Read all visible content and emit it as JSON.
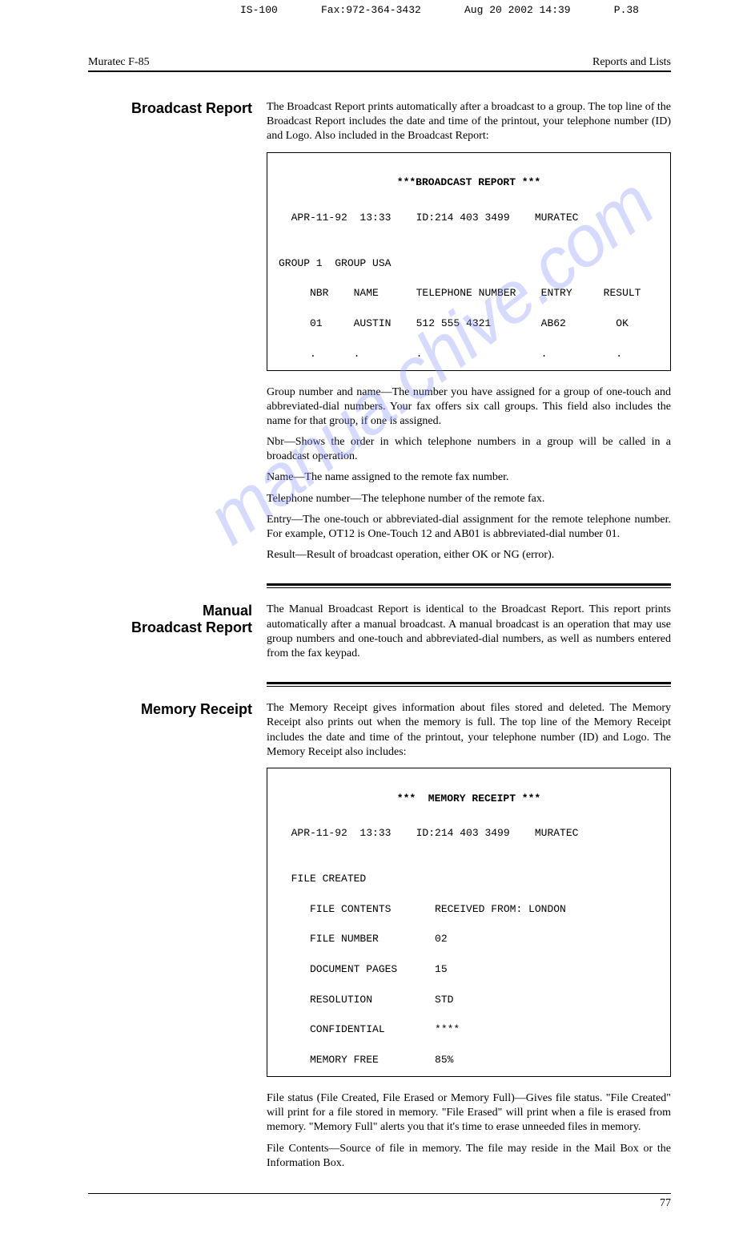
{
  "fax_header": {
    "device": "IS-100",
    "fax": "Fax:972-364-3432",
    "datetime": "Aug 20 2002 14:39",
    "page": "P.38"
  },
  "running_header": {
    "left": "Muratec F-85",
    "right": "Reports and Lists"
  },
  "watermark": "manua.chive.com",
  "sections": {
    "broadcast": {
      "heading": "Broadcast Report",
      "intro": "The Broadcast Report prints automatically after a broadcast to a group. The top line of the Broadcast Report includes the date and time of the printout, your telephone number (ID) and Logo. Also included in the Broadcast Report:",
      "report": {
        "title": "***BROADCAST REPORT ***",
        "line1": "  APR-11-92  13:33    ID:214 403 3499    MURATEC",
        "line2": "GROUP 1  GROUP USA",
        "line3": "     NBR    NAME      TELEPHONE NUMBER    ENTRY     RESULT",
        "line4": "     01     AUSTIN    512 555 4321        AB62        OK",
        "line5": "     .      .         .                   .           ."
      },
      "p1": "Group number and name—The number you have assigned for a group of one-touch and abbreviated-dial numbers. Your fax offers six call groups. This field also includes the name for that group, if one is assigned.",
      "p2": "Nbr—Shows the order in which telephone numbers in a group will be called in a broadcast operation.",
      "p3": "Name—The name assigned to the remote fax number.",
      "p4": "Telephone number—The telephone number of the remote fax.",
      "p5": "Entry—The one-touch or abbreviated-dial assignment for the remote telephone number. For example, OT12 is One-Touch 12 and AB01 is abbreviated-dial number 01.",
      "p6": "Result—Result of broadcast operation, either OK or NG (error)."
    },
    "manual": {
      "heading1": "Manual",
      "heading2": "Broadcast Report",
      "body": "The Manual Broadcast Report is identical to the Broadcast Report. This report prints automatically after a manual broadcast. A manual broadcast is an operation that may use group numbers and one-touch and abbreviated-dial numbers, as well as numbers entered from the fax keypad."
    },
    "memory": {
      "heading": "Memory Receipt",
      "intro": "The Memory Receipt gives information about files stored and deleted. The Memory Receipt also prints out when the memory is full. The top line of the Memory Receipt includes the date and time of the printout, your telephone number (ID) and Logo. The Memory Receipt also includes:",
      "report": {
        "title": "***  MEMORY RECEIPT ***",
        "line1": "  APR-11-92  13:33    ID:214 403 3499    MURATEC",
        "line2": "  FILE CREATED",
        "line3": "     FILE CONTENTS       RECEIVED FROM: LONDON",
        "line4": "     FILE NUMBER         02",
        "line5": "     DOCUMENT PAGES      15",
        "line6": "     RESOLUTION          STD",
        "line7": "     CONFIDENTIAL        ****",
        "line8": "     MEMORY FREE         85%"
      },
      "p1": "File status (File Created, File Erased or Memory Full)—Gives file status. \"File Created\" will print for a file stored in memory. \"File Erased\" will print when a file is erased from memory. \"Memory Full\" alerts you that it's time to erase unneeded files in memory.",
      "p2": "File Contents—Source of file in memory. The file may reside in the Mail Box or the Information Box."
    }
  },
  "page_number": "77"
}
